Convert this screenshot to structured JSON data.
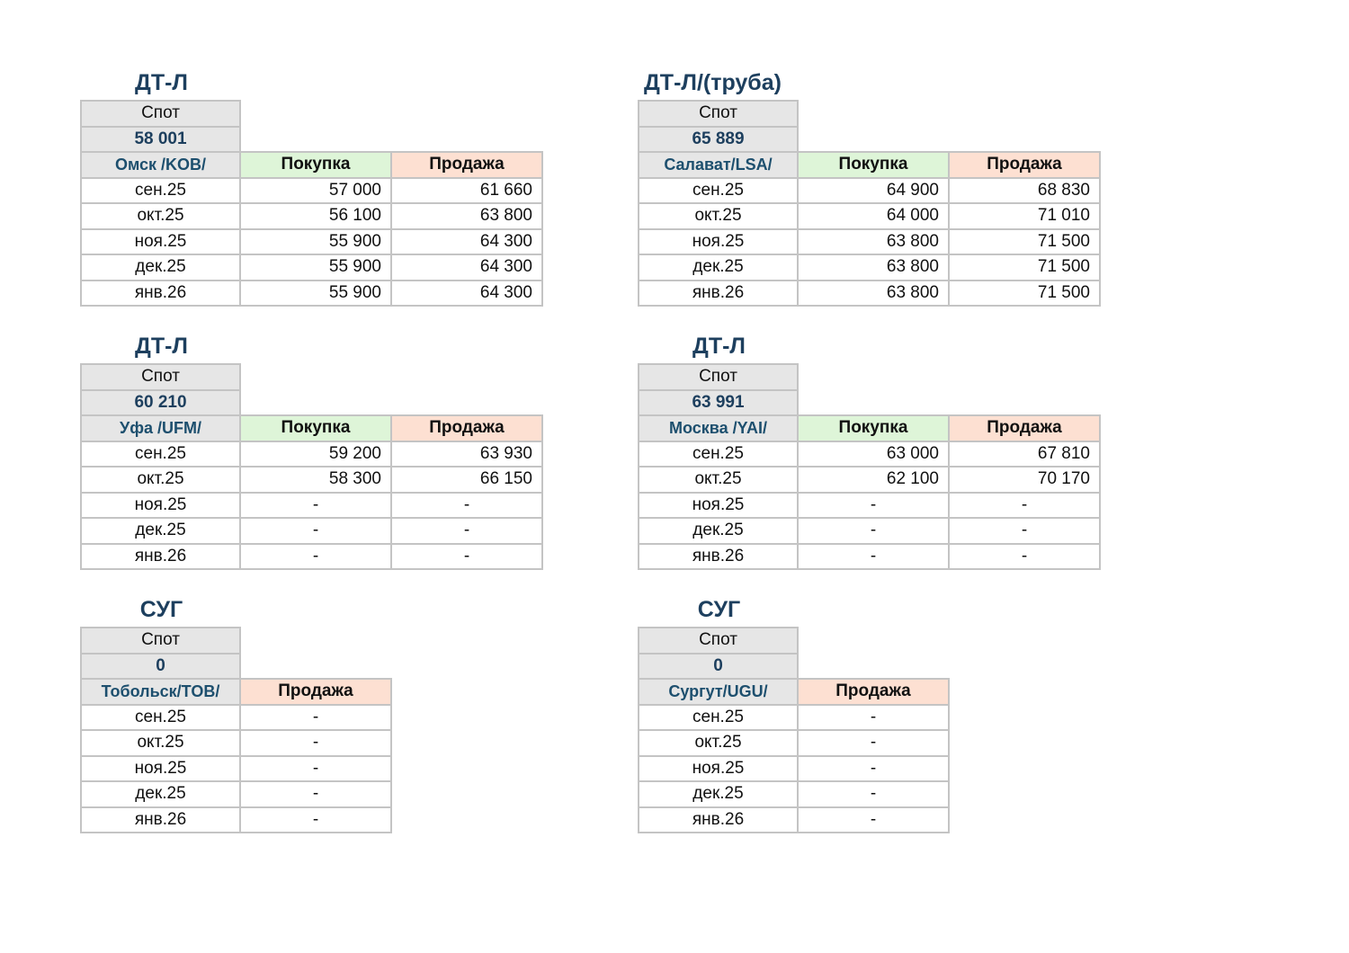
{
  "panels": [
    {
      "title": "ДТ-Л",
      "spot_label": "Спот",
      "spot_value": "58 001",
      "location": "Омск /KOB/",
      "buy_label": "Покупка",
      "sell_label": "Продажа",
      "rows": [
        {
          "month": "сен.25",
          "buy": "57 000",
          "sell": "61 660"
        },
        {
          "month": "окт.25",
          "buy": "56 100",
          "sell": "63 800"
        },
        {
          "month": "ноя.25",
          "buy": "55 900",
          "sell": "64 300"
        },
        {
          "month": "дек.25",
          "buy": "55 900",
          "sell": "64 300"
        },
        {
          "month": "янв.26",
          "buy": "55 900",
          "sell": "64 300"
        }
      ]
    },
    {
      "title": "ДТ-Л/(труба)",
      "spot_label": "Спот",
      "spot_value": "65 889",
      "location": "Салават/LSA/",
      "buy_label": "Покупка",
      "sell_label": "Продажа",
      "rows": [
        {
          "month": "сен.25",
          "buy": "64 900",
          "sell": "68 830"
        },
        {
          "month": "окт.25",
          "buy": "64 000",
          "sell": "71 010"
        },
        {
          "month": "ноя.25",
          "buy": "63 800",
          "sell": "71 500"
        },
        {
          "month": "дек.25",
          "buy": "63 800",
          "sell": "71 500"
        },
        {
          "month": "янв.26",
          "buy": "63 800",
          "sell": "71 500"
        }
      ]
    },
    {
      "title": "ДТ-Л",
      "spot_label": "Спот",
      "spot_value": "60 210",
      "location": "Уфа /UFM/",
      "buy_label": "Покупка",
      "sell_label": "Продажа",
      "rows": [
        {
          "month": "сен.25",
          "buy": "59 200",
          "sell": "63 930"
        },
        {
          "month": "окт.25",
          "buy": "58 300",
          "sell": "66 150"
        },
        {
          "month": "ноя.25",
          "buy": "-",
          "sell": "-"
        },
        {
          "month": "дек.25",
          "buy": "-",
          "sell": "-"
        },
        {
          "month": "янв.26",
          "buy": "-",
          "sell": "-"
        }
      ]
    },
    {
      "title": "ДТ-Л",
      "spot_label": "Спот",
      "spot_value": "63 991",
      "location": "Москва /YAI/",
      "buy_label": "Покупка",
      "sell_label": "Продажа",
      "rows": [
        {
          "month": "сен.25",
          "buy": "63 000",
          "sell": "67 810"
        },
        {
          "month": "окт.25",
          "buy": "62 100",
          "sell": "70 170"
        },
        {
          "month": "ноя.25",
          "buy": "-",
          "sell": "-"
        },
        {
          "month": "дек.25",
          "buy": "-",
          "sell": "-"
        },
        {
          "month": "янв.26",
          "buy": "-",
          "sell": "-"
        }
      ]
    },
    {
      "title": "СУГ",
      "spot_label": "Спот",
      "spot_value": "0",
      "location": "Тобольск/TOB/",
      "sell_label": "Продажа",
      "rows": [
        {
          "month": "сен.25",
          "sell": "-"
        },
        {
          "month": "окт.25",
          "sell": "-"
        },
        {
          "month": "ноя.25",
          "sell": "-"
        },
        {
          "month": "дек.25",
          "sell": "-"
        },
        {
          "month": "янв.26",
          "sell": "-"
        }
      ]
    },
    {
      "title": "СУГ",
      "spot_label": "Спот",
      "spot_value": "0",
      "location": "Сургут/UGU/",
      "sell_label": "Продажа",
      "rows": [
        {
          "month": "сен.25",
          "sell": "-"
        },
        {
          "month": "окт.25",
          "sell": "-"
        },
        {
          "month": "ноя.25",
          "sell": "-"
        },
        {
          "month": "дек.25",
          "sell": "-"
        },
        {
          "month": "янв.26",
          "sell": "-"
        }
      ]
    }
  ]
}
